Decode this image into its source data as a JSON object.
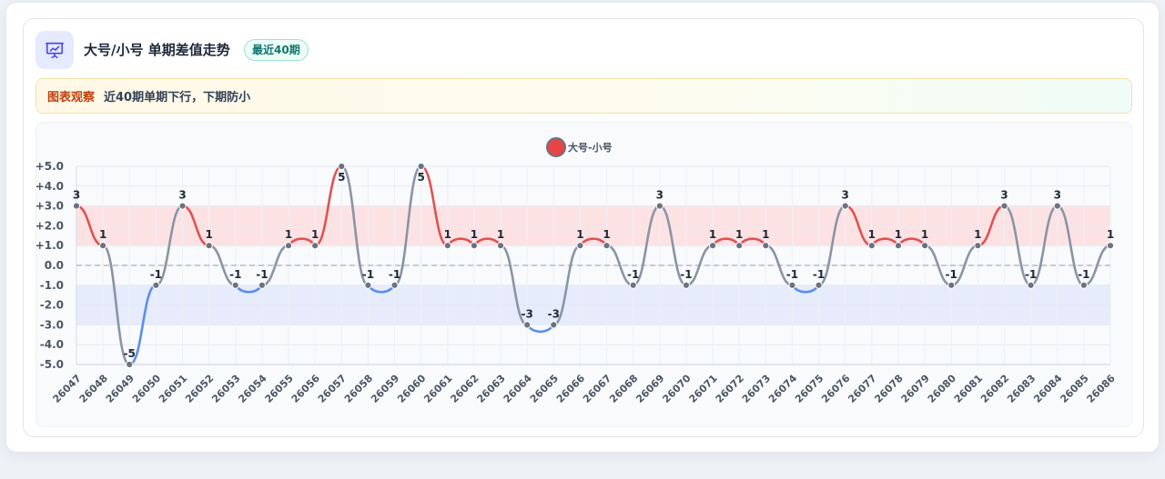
{
  "header": {
    "title": "大号/小号 单期差值走势",
    "badge": "最近40期",
    "icon": "presentation-chart-icon",
    "accent": "#4f46e5"
  },
  "note": {
    "label": "图表观察",
    "text": "近40期单期下行，下期防小"
  },
  "chart_data": {
    "type": "line",
    "categories": [
      "26047",
      "26048",
      "26049",
      "26050",
      "26051",
      "26052",
      "26053",
      "26054",
      "26055",
      "26056",
      "26057",
      "26058",
      "26059",
      "26060",
      "26061",
      "26062",
      "26063",
      "26064",
      "26065",
      "26066",
      "26067",
      "26068",
      "26069",
      "26070",
      "26071",
      "26072",
      "26073",
      "26074",
      "26075",
      "26076",
      "26077",
      "26078",
      "26079",
      "26080",
      "26081",
      "26082",
      "26083",
      "26084",
      "26085",
      "26086"
    ],
    "series": [
      {
        "name": "大号-小号",
        "values": [
          3,
          1,
          -5,
          -1,
          3,
          1,
          -1,
          -1,
          1,
          1,
          5,
          -1,
          -1,
          5,
          1,
          1,
          1,
          -3,
          -3,
          1,
          1,
          -1,
          3,
          -1,
          1,
          1,
          1,
          -1,
          -1,
          3,
          1,
          1,
          1,
          -1,
          1,
          3,
          -1,
          3,
          -1,
          1
        ],
        "data_labels": [
          "3",
          "1",
          "-5",
          "-1",
          "3",
          "1",
          "-1",
          "-1",
          "1",
          "1",
          "5",
          "-1",
          "-1",
          "5",
          "1",
          "1",
          "1",
          "-3",
          "-3",
          "1",
          "1",
          "-1",
          "3",
          "-1",
          "1",
          "1",
          "1",
          "-1",
          "-1",
          "3",
          "1",
          "1",
          "1",
          "-1",
          "1",
          "3",
          "-1",
          "3",
          "-1",
          "1"
        ]
      }
    ],
    "ylim": [
      -5,
      5
    ],
    "yticks": [
      5,
      4,
      3,
      2,
      1,
      0,
      -1,
      -2,
      -3,
      -4,
      -5
    ],
    "ytick_labels": [
      "+5.0",
      "+4.0",
      "+3.0",
      "+2.0",
      "+1.0",
      "0.0",
      "-1.0",
      "-2.0",
      "-3.0",
      "-4.0",
      "-5.0"
    ],
    "bands": [
      {
        "from": 1,
        "to": 3,
        "color": "#fde2e4"
      },
      {
        "from": -3,
        "to": -1,
        "color": "#e6ecfb"
      }
    ],
    "zero_line": true,
    "grid": true,
    "legend_position": "top-center",
    "colors": {
      "up": "#e05252",
      "down": "#5b8def",
      "neutral": "#8a94a6",
      "marker": "#6b7280",
      "legend_marker": "#e64545"
    }
  }
}
